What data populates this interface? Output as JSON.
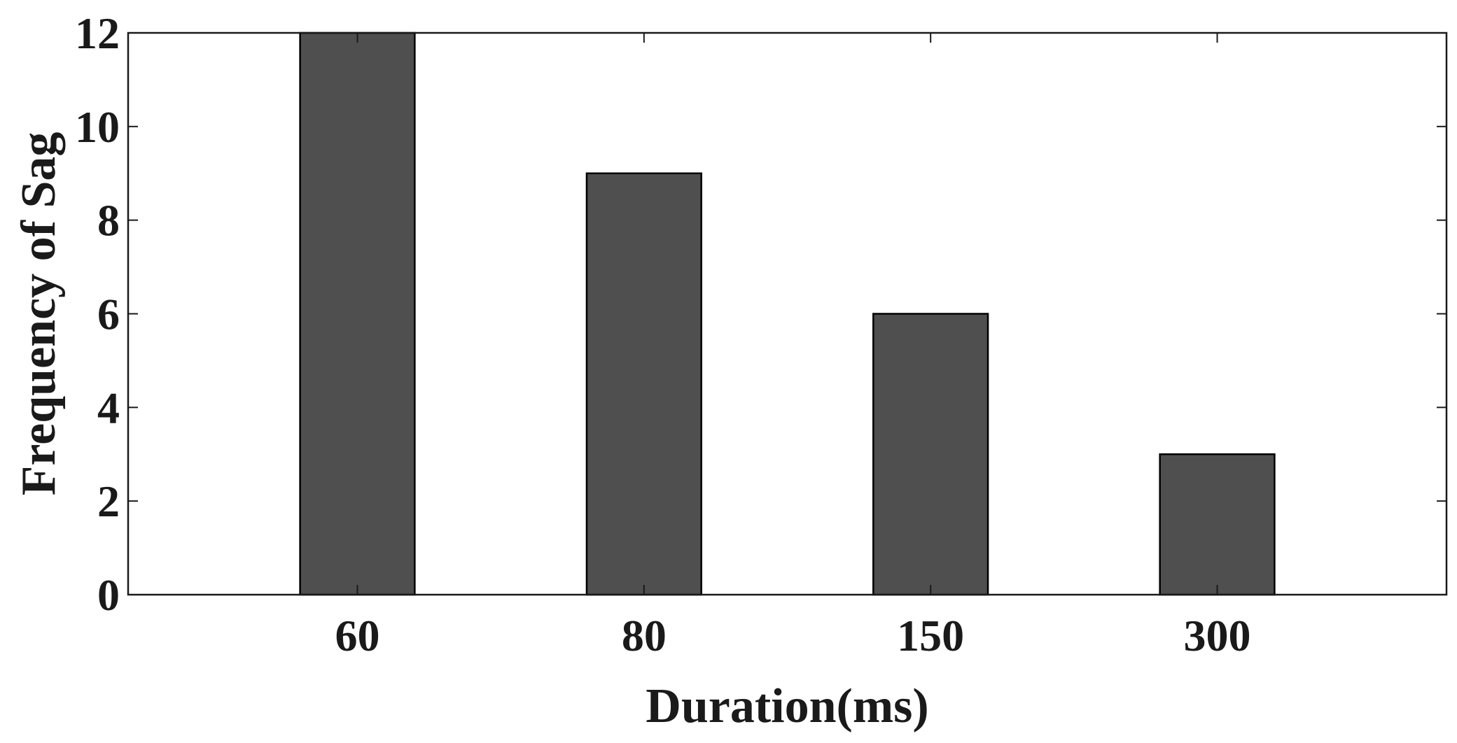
{
  "chart_data": {
    "type": "bar",
    "title": "",
    "xlabel": "Duration(ms)",
    "ylabel": "Frequency of Sag",
    "categories": [
      "60",
      "80",
      "150",
      "300"
    ],
    "values": [
      12,
      9,
      6,
      3
    ],
    "ylim": [
      0,
      12
    ],
    "yticks": [
      "0",
      "2",
      "4",
      "6",
      "8",
      "10",
      "12"
    ],
    "grid": false,
    "legend": "none",
    "colors": {
      "bar": "#4f4f4f",
      "bar_edge": "#000000",
      "axis": "#1a1a1a",
      "background": "#ffffff"
    }
  }
}
